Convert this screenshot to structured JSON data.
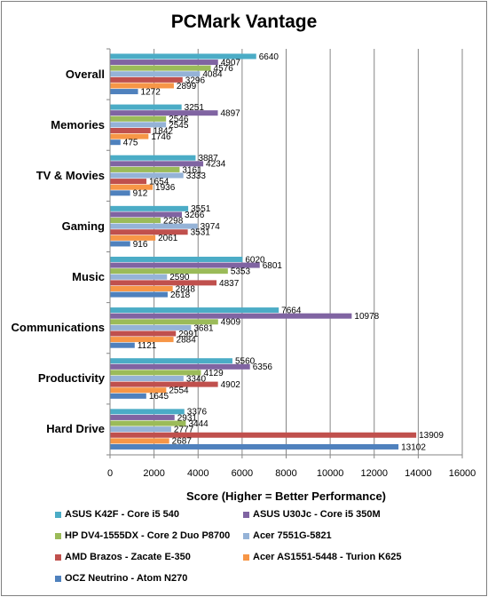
{
  "chart_data": {
    "type": "bar",
    "orientation": "horizontal",
    "title": "PCMark Vantage",
    "xlabel": "Score (Higher = Better Performance)",
    "ylabel": "",
    "xlim": [
      0,
      16000
    ],
    "x_ticks": [
      "0",
      "2000",
      "4000",
      "6000",
      "8000",
      "10000",
      "12000",
      "14000",
      "16000"
    ],
    "grid": "vertical",
    "legend_position": "bottom",
    "categories": [
      "Overall",
      "Memories",
      "TV & Movies",
      "Gaming",
      "Music",
      "Communications",
      "Productivity",
      "Hard Drive"
    ],
    "series": [
      {
        "name": "ASUS K42F - Core i5 540",
        "color": "#4bacc6",
        "values": [
          6640,
          3251,
          3887,
          3551,
          6020,
          7664,
          5560,
          3376
        ]
      },
      {
        "name": "ASUS U30Jc - Core i5 350M",
        "color": "#8064a2",
        "values": [
          4907,
          4897,
          4234,
          3266,
          6801,
          10978,
          6356,
          2931
        ]
      },
      {
        "name": "HP DV4-1555DX - Core 2 Duo P8700",
        "color": "#9bbb59",
        "values": [
          4576,
          2546,
          3161,
          2298,
          5353,
          4909,
          4129,
          3444
        ]
      },
      {
        "name": "Acer 7551G-5821",
        "color": "#95b3d7",
        "values": [
          4084,
          2545,
          3333,
          3974,
          2590,
          3681,
          3340,
          2777
        ]
      },
      {
        "name": "AMD Brazos - Zacate E-350",
        "color": "#c0504d",
        "values": [
          3296,
          1842,
          1654,
          3531,
          4837,
          2991,
          4902,
          13909
        ]
      },
      {
        "name": "Acer AS1551-5448 - Turion K625",
        "color": "#f79646",
        "values": [
          2899,
          1746,
          1936,
          2061,
          2848,
          2884,
          2554,
          2687
        ]
      },
      {
        "name": "OCZ Neutrino - Atom N270",
        "color": "#4f81bd",
        "values": [
          1272,
          475,
          912,
          916,
          2618,
          1121,
          1645,
          13102
        ]
      }
    ]
  }
}
